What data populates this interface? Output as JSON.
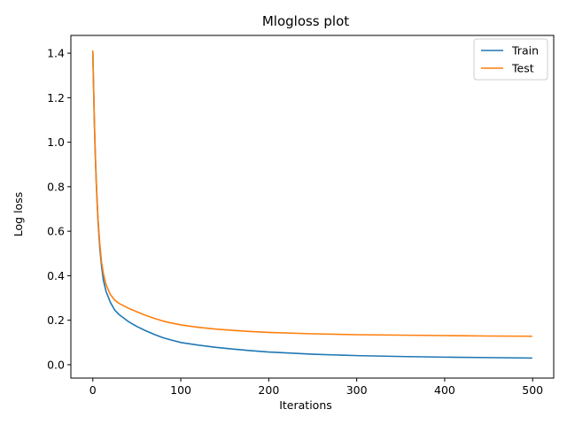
{
  "chart_data": {
    "type": "line",
    "title": "Mlogloss plot",
    "xlabel": "Iterations",
    "ylabel": "Log loss",
    "xlim": [
      -24.95,
      523.95
    ],
    "ylim": [
      -0.06,
      1.48
    ],
    "xticks": [
      0,
      100,
      200,
      300,
      400,
      500
    ],
    "xtick_labels": [
      "0",
      "100",
      "200",
      "300",
      "400",
      "500"
    ],
    "yticks": [
      0.0,
      0.2,
      0.4,
      0.6,
      0.8,
      1.0,
      1.2,
      1.4
    ],
    "ytick_labels": [
      "0.0",
      "0.2",
      "0.4",
      "0.6",
      "0.8",
      "1.0",
      "1.2",
      "1.4"
    ],
    "grid": false,
    "legend_position": "top-right",
    "series": [
      {
        "name": "Train",
        "color": "#1f77b4",
        "x": [
          0,
          1,
          2,
          3,
          4,
          5,
          6,
          8,
          10,
          12,
          15,
          20,
          25,
          30,
          40,
          50,
          60,
          70,
          80,
          90,
          100,
          120,
          140,
          160,
          180,
          200,
          250,
          300,
          350,
          400,
          450,
          499
        ],
        "y": [
          1.405,
          1.22,
          1.05,
          0.92,
          0.81,
          0.72,
          0.64,
          0.52,
          0.44,
          0.38,
          0.33,
          0.28,
          0.245,
          0.225,
          0.195,
          0.172,
          0.153,
          0.136,
          0.121,
          0.11,
          0.1,
          0.088,
          0.078,
          0.07,
          0.063,
          0.057,
          0.047,
          0.041,
          0.037,
          0.034,
          0.032,
          0.03
        ]
      },
      {
        "name": "Test",
        "color": "#ff7f0e",
        "x": [
          0,
          1,
          2,
          3,
          4,
          5,
          6,
          8,
          10,
          12,
          15,
          20,
          25,
          30,
          40,
          50,
          60,
          70,
          80,
          90,
          100,
          120,
          140,
          160,
          180,
          200,
          250,
          300,
          350,
          400,
          450,
          499
        ],
        "y": [
          1.41,
          1.23,
          1.06,
          0.93,
          0.82,
          0.73,
          0.65,
          0.54,
          0.46,
          0.41,
          0.36,
          0.315,
          0.29,
          0.275,
          0.255,
          0.238,
          0.222,
          0.208,
          0.196,
          0.187,
          0.179,
          0.168,
          0.16,
          0.154,
          0.149,
          0.145,
          0.139,
          0.135,
          0.133,
          0.131,
          0.129,
          0.128
        ]
      }
    ]
  }
}
